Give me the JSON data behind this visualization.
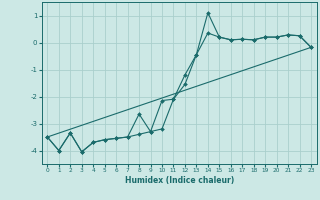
{
  "xlabel": "Humidex (Indice chaleur)",
  "xlim": [
    -0.5,
    23.5
  ],
  "ylim": [
    -4.5,
    1.5
  ],
  "yticks": [
    1,
    0,
    -1,
    -2,
    -3,
    -4
  ],
  "xticks": [
    0,
    1,
    2,
    3,
    4,
    5,
    6,
    7,
    8,
    9,
    10,
    11,
    12,
    13,
    14,
    15,
    16,
    17,
    18,
    19,
    20,
    21,
    22,
    23
  ],
  "bg_color": "#cce8e5",
  "line_color": "#1a6b6b",
  "grid_color": "#aacfcc",
  "line1_x": [
    0,
    1,
    2,
    3,
    4,
    5,
    6,
    7,
    8,
    9,
    10,
    11,
    12,
    13,
    14,
    15,
    16,
    17,
    18,
    19,
    20,
    21,
    22,
    23
  ],
  "line1_y": [
    -3.5,
    -4.0,
    -3.35,
    -4.05,
    -3.7,
    -3.6,
    -3.55,
    -3.5,
    -2.65,
    -3.3,
    -2.15,
    -2.1,
    -1.2,
    -0.45,
    1.1,
    0.2,
    0.1,
    0.12,
    0.1,
    0.2,
    0.2,
    0.28,
    0.25,
    -0.18
  ],
  "line2_x": [
    0,
    1,
    2,
    3,
    4,
    5,
    6,
    7,
    8,
    9,
    10,
    11,
    12,
    13,
    14,
    15,
    16,
    17,
    18,
    19,
    20,
    21,
    22,
    23
  ],
  "line2_y": [
    -3.5,
    -4.0,
    -3.35,
    -4.05,
    -3.7,
    -3.6,
    -3.55,
    -3.5,
    -3.4,
    -3.3,
    -3.2,
    -2.1,
    -1.55,
    -0.45,
    0.35,
    0.2,
    0.1,
    0.12,
    0.1,
    0.2,
    0.2,
    0.28,
    0.25,
    -0.18
  ],
  "line3_x": [
    0,
    23
  ],
  "line3_y": [
    -3.5,
    -0.18
  ]
}
